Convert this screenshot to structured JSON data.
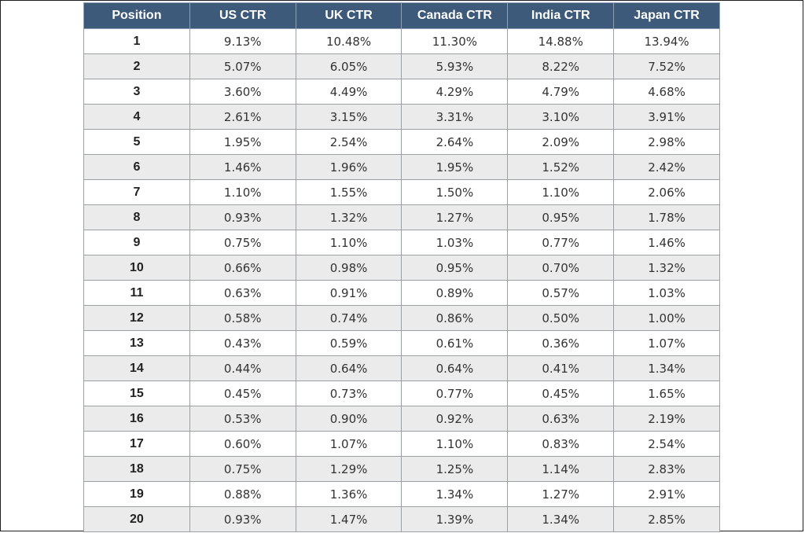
{
  "chart_data": {
    "type": "table",
    "columns": [
      "Position",
      "US CTR",
      "UK CTR",
      "Canada CTR",
      "India CTR",
      "Japan CTR"
    ],
    "rows": [
      [
        "1",
        "9.13%",
        "10.48%",
        "11.30%",
        "14.88%",
        "13.94%"
      ],
      [
        "2",
        "5.07%",
        "6.05%",
        "5.93%",
        "8.22%",
        "7.52%"
      ],
      [
        "3",
        "3.60%",
        "4.49%",
        "4.29%",
        "4.79%",
        "4.68%"
      ],
      [
        "4",
        "2.61%",
        "3.15%",
        "3.31%",
        "3.10%",
        "3.91%"
      ],
      [
        "5",
        "1.95%",
        "2.54%",
        "2.64%",
        "2.09%",
        "2.98%"
      ],
      [
        "6",
        "1.46%",
        "1.96%",
        "1.95%",
        "1.52%",
        "2.42%"
      ],
      [
        "7",
        "1.10%",
        "1.55%",
        "1.50%",
        "1.10%",
        "2.06%"
      ],
      [
        "8",
        "0.93%",
        "1.32%",
        "1.27%",
        "0.95%",
        "1.78%"
      ],
      [
        "9",
        "0.75%",
        "1.10%",
        "1.03%",
        "0.77%",
        "1.46%"
      ],
      [
        "10",
        "0.66%",
        "0.98%",
        "0.95%",
        "0.70%",
        "1.32%"
      ],
      [
        "11",
        "0.63%",
        "0.91%",
        "0.89%",
        "0.57%",
        "1.03%"
      ],
      [
        "12",
        "0.58%",
        "0.74%",
        "0.86%",
        "0.50%",
        "1.00%"
      ],
      [
        "13",
        "0.43%",
        "0.59%",
        "0.61%",
        "0.36%",
        "1.07%"
      ],
      [
        "14",
        "0.44%",
        "0.64%",
        "0.64%",
        "0.41%",
        "1.34%"
      ],
      [
        "15",
        "0.45%",
        "0.73%",
        "0.77%",
        "0.45%",
        "1.65%"
      ],
      [
        "16",
        "0.53%",
        "0.90%",
        "0.92%",
        "0.63%",
        "2.19%"
      ],
      [
        "17",
        "0.60%",
        "1.07%",
        "1.10%",
        "0.83%",
        "2.54%"
      ],
      [
        "18",
        "0.75%",
        "1.29%",
        "1.25%",
        "1.14%",
        "2.83%"
      ],
      [
        "19",
        "0.88%",
        "1.36%",
        "1.34%",
        "1.27%",
        "2.91%"
      ],
      [
        "20",
        "0.93%",
        "1.47%",
        "1.39%",
        "1.34%",
        "2.85%"
      ]
    ],
    "colors": {
      "header_bg": "#3d5a7a",
      "header_text": "#ffffff",
      "row_alt_bg": "#ebebeb",
      "row_bg": "#ffffff"
    }
  }
}
